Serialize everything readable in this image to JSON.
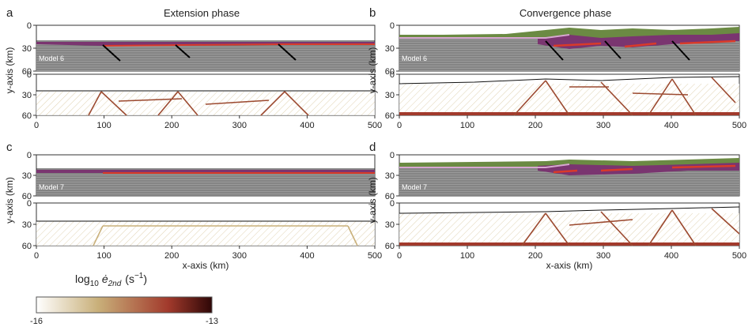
{
  "phases": {
    "extension": "Extension phase",
    "convergence": "Convergence phase"
  },
  "panel_letters": [
    "a",
    "b",
    "c",
    "d"
  ],
  "models": {
    "top": "Model 6",
    "bottom": "Model 7"
  },
  "axes": {
    "x_title": "x-axis (km)",
    "y_title": "y-axis (km)",
    "x_ticks": [
      "0",
      "100",
      "200",
      "300",
      "400",
      "500"
    ],
    "y_ticks": [
      "0",
      "30",
      "60"
    ]
  },
  "colorbar": {
    "label_base": "log",
    "label_sub": "10",
    "label_symbol": "ė",
    "label_symbol_sub": "2nd",
    "label_units": "(s",
    "label_units_exp": "−1",
    "label_close": ")",
    "min_label": "-16",
    "max_label": "-13",
    "colors": [
      "#ffffff",
      "#c9b07a",
      "#a23a2c",
      "#2e0707"
    ]
  }
}
